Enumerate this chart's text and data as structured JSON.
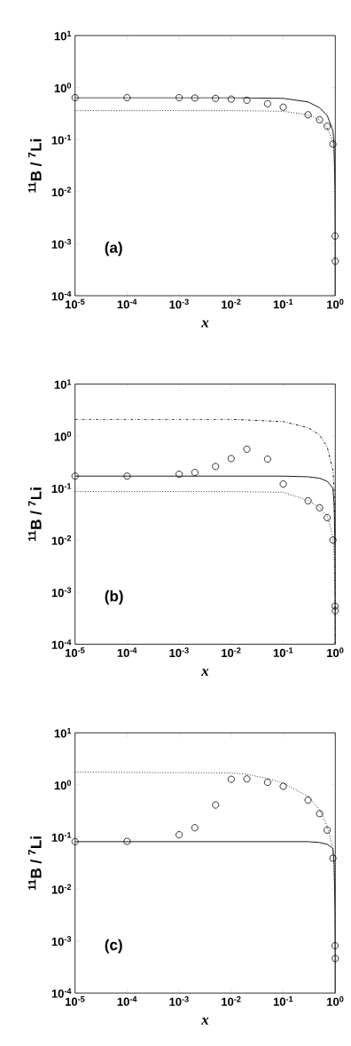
{
  "chart_data": [
    {
      "type": "line",
      "xlabel": "x",
      "ylabel": "$^{11}$B / $^{7}$Li",
      "log": "xy",
      "annotations": [
        "(a)"
      ],
      "xlim": [
        1e-05,
        1
      ],
      "ylim": [
        0.0001,
        10
      ],
      "xticks": [
        {
          "value": 1e-05,
          "label": "10$^{-5}$"
        },
        {
          "value": 0.0001,
          "label": "10$^{-4}$"
        },
        {
          "value": 0.001,
          "label": "10$^{-3}$"
        },
        {
          "value": 0.01,
          "label": "10$^{-2}$"
        },
        {
          "value": 0.1,
          "label": "10$^{-1}$"
        },
        {
          "value": 1,
          "label": "10$^{0}$"
        }
      ],
      "yticks": [
        {
          "value": 0.0001,
          "label": "10$^{-4}$"
        },
        {
          "value": 0.001,
          "label": "10$^{-3}$"
        },
        {
          "value": 0.01,
          "label": "10$^{-2}$"
        },
        {
          "value": 0.1,
          "label": "10$^{-1}$"
        },
        {
          "value": 1,
          "label": "10$^{0}$"
        },
        {
          "value": 10,
          "label": "10$^{1}$"
        }
      ],
      "series": [
        {
          "line_style": "solid",
          "color": "#000000",
          "x": [
            1e-05,
            0.01,
            0.1,
            0.3,
            0.5,
            0.7,
            0.9,
            0.95,
            0.99,
            0.999,
            0.9999
          ],
          "values": [
            0.64,
            0.64,
            0.62,
            0.53,
            0.41,
            0.29,
            0.15,
            0.08,
            0.01,
            0.001,
            0.0001
          ]
        },
        {
          "line_style": "dotted",
          "color": "#000000",
          "x": [
            1e-05,
            0.01,
            0.1,
            0.3,
            0.5,
            0.7,
            0.9,
            0.95,
            0.99,
            0.999,
            0.9999
          ],
          "values": [
            0.36,
            0.36,
            0.35,
            0.3,
            0.24,
            0.17,
            0.09,
            0.05,
            0.008,
            0.0008,
            0.0001
          ]
        },
        {
          "type": "scatter",
          "marker": "circle",
          "color": "#000000",
          "x": [
            1e-05,
            0.0001,
            0.001,
            0.002,
            0.005,
            0.01,
            0.02,
            0.05,
            0.1,
            0.3,
            0.5,
            0.7,
            0.9,
            0.99,
            1
          ],
          "values": [
            0.64,
            0.64,
            0.64,
            0.63,
            0.62,
            0.6,
            0.57,
            0.49,
            0.42,
            0.3,
            0.24,
            0.18,
            0.082,
            0.0014,
            0.00046
          ]
        }
      ]
    },
    {
      "type": "line",
      "xlabel": "x",
      "ylabel": "$^{11}$B / $^{7}$Li",
      "log": "xy",
      "annotations": [
        "(b)"
      ],
      "xlim": [
        1e-05,
        1
      ],
      "ylim": [
        0.0001,
        10
      ],
      "xticks": [
        {
          "value": 1e-05,
          "label": "10$^{-5}$"
        },
        {
          "value": 0.0001,
          "label": "10$^{-4}$"
        },
        {
          "value": 0.001,
          "label": "10$^{-3}$"
        },
        {
          "value": 0.01,
          "label": "10$^{-2}$"
        },
        {
          "value": 0.1,
          "label": "10$^{-1}$"
        },
        {
          "value": 1,
          "label": "10$^{0}$"
        }
      ],
      "yticks": [
        {
          "value": 0.0001,
          "label": "10$^{-4}$"
        },
        {
          "value": 0.001,
          "label": "10$^{-3}$"
        },
        {
          "value": 0.01,
          "label": "10$^{-2}$"
        },
        {
          "value": 0.1,
          "label": "10$^{-1}$"
        },
        {
          "value": 1,
          "label": "10$^{0}$"
        },
        {
          "value": 10,
          "label": "10$^{1}$"
        }
      ],
      "series": [
        {
          "line_style": "dashdot",
          "color": "#000000",
          "x": [
            1e-05,
            0.01,
            0.1,
            0.3,
            0.5,
            0.7,
            0.9,
            0.95,
            0.99,
            0.999,
            0.9999
          ],
          "values": [
            2.1,
            2.1,
            1.9,
            1.45,
            1.05,
            0.62,
            0.22,
            0.1,
            0.01,
            0.001,
            0.0001
          ]
        },
        {
          "line_style": "solid",
          "color": "#000000",
          "x": [
            1e-05,
            0.01,
            0.1,
            0.3,
            0.5,
            0.7,
            0.9,
            0.95,
            0.99,
            0.999,
            0.9999
          ],
          "values": [
            0.17,
            0.17,
            0.17,
            0.165,
            0.155,
            0.135,
            0.1,
            0.05,
            0.006,
            0.0006,
            0.0001
          ]
        },
        {
          "line_style": "dotted",
          "color": "#000000",
          "x": [
            1e-05,
            0.01,
            0.1,
            0.3,
            0.5,
            0.7,
            0.9,
            0.95,
            0.99,
            0.999,
            0.9999
          ],
          "values": [
            0.086,
            0.086,
            0.083,
            0.058,
            0.043,
            0.029,
            0.012,
            0.005,
            0.0008,
            0.0002,
            0.0001
          ]
        },
        {
          "type": "scatter",
          "marker": "circle",
          "color": "#000000",
          "x": [
            1e-05,
            0.0001,
            0.001,
            0.002,
            0.005,
            0.01,
            0.02,
            0.05,
            0.1,
            0.3,
            0.5,
            0.7,
            0.9,
            0.99,
            1
          ],
          "values": [
            0.17,
            0.17,
            0.185,
            0.2,
            0.26,
            0.37,
            0.56,
            0.36,
            0.12,
            0.057,
            0.042,
            0.027,
            0.01,
            0.00054,
            0.00044
          ]
        }
      ]
    },
    {
      "type": "line",
      "xlabel": "x",
      "ylabel": "$^{11}$B / $^{7}$Li",
      "log": "xy",
      "annotations": [
        "(c)"
      ],
      "xlim": [
        1e-05,
        1
      ],
      "ylim": [
        0.0001,
        10
      ],
      "xticks": [
        {
          "value": 1e-05,
          "label": "10$^{-5}$"
        },
        {
          "value": 0.0001,
          "label": "10$^{-4}$"
        },
        {
          "value": 0.001,
          "label": "10$^{-3}$"
        },
        {
          "value": 0.01,
          "label": "10$^{-2}$"
        },
        {
          "value": 0.1,
          "label": "10$^{-1}$"
        },
        {
          "value": 1,
          "label": "10$^{0}$"
        }
      ],
      "yticks": [
        {
          "value": 0.0001,
          "label": "10$^{-4}$"
        },
        {
          "value": 0.001,
          "label": "10$^{-3}$"
        },
        {
          "value": 0.01,
          "label": "10$^{-2}$"
        },
        {
          "value": 0.1,
          "label": "10$^{-1}$"
        },
        {
          "value": 1,
          "label": "10$^{0}$"
        },
        {
          "value": 10,
          "label": "10$^{1}$"
        }
      ],
      "series": [
        {
          "line_style": "dotted",
          "color": "#000000",
          "x": [
            1e-05,
            0.01,
            0.02,
            0.05,
            0.1,
            0.3,
            0.5,
            0.7,
            0.9,
            0.95,
            0.99,
            0.999,
            0.9999
          ],
          "values": [
            1.75,
            1.7,
            1.6,
            1.32,
            1.08,
            0.6,
            0.33,
            0.16,
            0.06,
            0.03,
            0.004,
            0.0005,
            0.0001
          ]
        },
        {
          "line_style": "solid",
          "color": "#000000",
          "x": [
            1e-05,
            0.01,
            0.1,
            0.3,
            0.5,
            0.7,
            0.9,
            0.95,
            0.99,
            0.999,
            0.9999
          ],
          "values": [
            0.081,
            0.081,
            0.081,
            0.081,
            0.078,
            0.072,
            0.06,
            0.03,
            0.004,
            0.0005,
            0.0001
          ]
        },
        {
          "type": "scatter",
          "marker": "circle",
          "color": "#000000",
          "x": [
            1e-05,
            0.0001,
            0.001,
            0.002,
            0.005,
            0.01,
            0.02,
            0.05,
            0.1,
            0.3,
            0.5,
            0.7,
            0.9,
            0.99,
            1
          ],
          "values": [
            0.081,
            0.082,
            0.11,
            0.15,
            0.41,
            1.28,
            1.3,
            1.12,
            0.94,
            0.51,
            0.28,
            0.135,
            0.039,
            0.00081,
            0.00046
          ]
        }
      ]
    }
  ]
}
